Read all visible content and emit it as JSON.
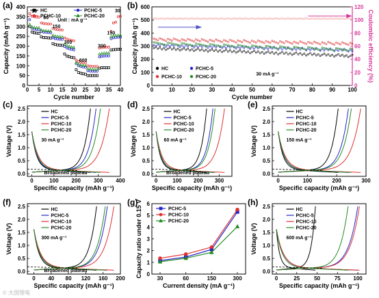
{
  "watermark": "© 大国锂电",
  "chart_data": [
    {
      "id": "a",
      "type": "scatter",
      "letter": "(a)",
      "xlabel": "Cycle number",
      "ylabel": "Capacity (mAh g⁻¹)",
      "xlim": [
        0,
        40
      ],
      "ylim": [
        0,
        400
      ],
      "xticks": [
        0,
        5,
        10,
        15,
        20,
        25,
        30,
        35,
        40
      ],
      "yticks": [
        0,
        50,
        100,
        150,
        200,
        250,
        300,
        350,
        400
      ],
      "unit_label": "Unit : mA g⁻¹",
      "rate_labels": [
        {
          "text": "30",
          "x": 3,
          "y": 370
        },
        {
          "text": "60",
          "x": 8,
          "y": 338
        },
        {
          "text": "150",
          "x": 12.5,
          "y": 293
        },
        {
          "text": "300",
          "x": 17.5,
          "y": 213
        },
        {
          "text": "600",
          "x": 24,
          "y": 120
        },
        {
          "text": "300",
          "x": 32,
          "y": 193
        },
        {
          "text": "150",
          "x": 36,
          "y": 260
        },
        {
          "text": "30",
          "x": 38.8,
          "y": 372
        }
      ],
      "series": [
        {
          "name": "HC",
          "color": "#000000",
          "marker": "square",
          "values": [
            300,
            272,
            268,
            266,
            265,
            247,
            244,
            243,
            242,
            241,
            212,
            208,
            206,
            205,
            204,
            160,
            150,
            146,
            143,
            141,
            80,
            66,
            62,
            59,
            57,
            50,
            50,
            50,
            50,
            50,
            88,
            90,
            90,
            90,
            90,
            180,
            182,
            183,
            184,
            184
          ]
        },
        {
          "name": "PCHC-5",
          "color": "#2323c8",
          "marker": "circle",
          "values": [
            335,
            290,
            286,
            284,
            283,
            274,
            271,
            270,
            269,
            268,
            242,
            238,
            236,
            235,
            234,
            198,
            190,
            186,
            183,
            181,
            110,
            100,
            96,
            94,
            92,
            75,
            73,
            72,
            72,
            72,
            145,
            148,
            149,
            150,
            150,
            238,
            242,
            244,
            245,
            246
          ]
        },
        {
          "name": "PCHC-10",
          "color": "#e03030",
          "marker": "circle",
          "values": [
            365,
            352,
            349,
            348,
            347,
            318,
            315,
            314,
            313,
            312,
            290,
            286,
            284,
            283,
            282,
            242,
            236,
            232,
            229,
            227,
            130,
            122,
            118,
            116,
            115,
            100,
            98,
            97,
            97,
            97,
            190,
            193,
            194,
            195,
            195,
            275,
            318,
            322,
            350,
            352
          ]
        },
        {
          "name": "PCHC-20",
          "color": "#228b22",
          "marker": "triangle",
          "values": [
            310,
            298,
            295,
            294,
            293,
            282,
            279,
            278,
            277,
            276,
            255,
            251,
            249,
            248,
            247,
            210,
            203,
            199,
            196,
            194,
            118,
            108,
            104,
            102,
            100,
            85,
            83,
            82,
            82,
            82,
            160,
            163,
            164,
            165,
            165,
            248,
            252,
            254,
            255,
            256
          ]
        }
      ]
    },
    {
      "id": "b",
      "type": "scatter",
      "letter": "(b)",
      "xlabel": "Cycle number",
      "ylabel": "Capacity (mAh g⁻¹)",
      "y2label": "Coulombic efficiency (%)",
      "xlim": [
        0,
        100
      ],
      "ylim": [
        0,
        600
      ],
      "y2lim": [
        0,
        120
      ],
      "xticks": [
        0,
        10,
        20,
        30,
        40,
        50,
        60,
        70,
        80,
        90,
        100
      ],
      "yticks": [
        0,
        100,
        200,
        300,
        400,
        500,
        600
      ],
      "y2ticks": [
        0,
        20,
        40,
        60,
        80,
        100,
        120
      ],
      "rate_label": "30 mA g⁻¹",
      "coulombic_efficiency": 102,
      "series": [
        {
          "name": "HC",
          "color": "#000000",
          "start": 285,
          "end": 225
        },
        {
          "name": "PCHC-5",
          "color": "#2323c8",
          "start": 308,
          "end": 268
        },
        {
          "name": "PCHC-10",
          "color": "#e03030",
          "start": 352,
          "end": 318
        },
        {
          "name": "PCHC-20",
          "color": "#228b22",
          "start": 322,
          "end": 272
        }
      ]
    },
    {
      "id": "c",
      "type": "line",
      "letter": "(c)",
      "xlabel": "Specific capacity (mAh g⁻¹)",
      "ylabel": "Voltage (V)",
      "xlim": [
        -20,
        400
      ],
      "ylim": [
        -0.1,
        2.6
      ],
      "xticks": [
        0,
        100,
        200,
        300,
        400
      ],
      "yticks": [
        0.0,
        0.5,
        1.0,
        1.5,
        2.0,
        2.5
      ],
      "rate": "30 mA g⁻¹",
      "annotation": "Broadened plateau",
      "caps": [
        265,
        290,
        350,
        310
      ]
    },
    {
      "id": "d",
      "type": "line",
      "letter": "(d)",
      "xlabel": "Specific capacity (mAh g⁻¹)",
      "ylabel": "Voltage (V)",
      "xlim": [
        -20,
        360
      ],
      "ylim": [
        -0.1,
        2.6
      ],
      "xticks": [
        0,
        100,
        200,
        300
      ],
      "yticks": [
        0.0,
        0.5,
        1.0,
        1.5,
        2.0,
        2.5
      ],
      "rate": "60 mA g⁻¹",
      "annotation": "Broadened plateau",
      "caps": [
        240,
        270,
        325,
        280
      ]
    },
    {
      "id": "e",
      "type": "line",
      "letter": "(e)",
      "xlabel": "Specific capacity (mAh g⁻¹)",
      "ylabel": "Voltage (V)",
      "xlim": [
        -20,
        300
      ],
      "ylim": [
        -0.1,
        2.6
      ],
      "xticks": [
        0,
        100,
        200,
        300
      ],
      "yticks": [
        0.0,
        0.5,
        1.0,
        1.5,
        2.0,
        2.5
      ],
      "rate": "150 mA g⁻¹",
      "annotation": "",
      "caps": [
        205,
        240,
        282,
        250
      ]
    },
    {
      "id": "f",
      "type": "line",
      "letter": "(f)",
      "xlabel": "Specific capacity (mAh g⁻¹)",
      "ylabel": "Voltage (V)",
      "xlim": [
        -15,
        200
      ],
      "ylim": [
        -0.1,
        2.6
      ],
      "xticks": [
        0,
        40,
        80,
        120,
        160,
        200
      ],
      "yticks": [
        0.0,
        0.5,
        1.0,
        1.5,
        2.0,
        2.5
      ],
      "rate": "300 mA g⁻¹",
      "annotation": "Broadened plateau",
      "caps": [
        145,
        170,
        185,
        165
      ]
    },
    {
      "id": "g",
      "type": "line",
      "letter": "(g)",
      "xlabel": "Current density (mA g⁻¹)",
      "ylabel": "Capacity ratio under 0.15 V",
      "categories": [
        "30",
        "60",
        "150",
        "300"
      ],
      "ylim": [
        0,
        6
      ],
      "yticks": [
        0,
        1,
        2,
        3,
        4,
        5,
        6
      ],
      "series": [
        {
          "name": "PCHC-5",
          "color": "#2323c8",
          "marker": "square",
          "values": [
            1.15,
            1.45,
            2.1,
            5.3
          ]
        },
        {
          "name": "PCHC-10",
          "color": "#e03030",
          "marker": "circle",
          "values": [
            1.35,
            1.7,
            2.3,
            5.5
          ]
        },
        {
          "name": "PCHC-20",
          "color": "#228b22",
          "marker": "triangle",
          "values": [
            1.05,
            1.35,
            1.85,
            4.05
          ]
        }
      ]
    },
    {
      "id": "h",
      "type": "line",
      "letter": "(h)",
      "xlabel": "Specific capacity (mAh g⁻¹)",
      "ylabel": "Voltage (V)",
      "xlim": [
        -5,
        110
      ],
      "ylim": [
        -0.1,
        2.6
      ],
      "xticks": [
        0,
        25,
        50,
        75,
        100
      ],
      "yticks": [
        0.0,
        0.5,
        1.0,
        1.5,
        2.0,
        2.5
      ],
      "rate": "600 mA g⁻¹",
      "annotation": "",
      "caps": [
        48,
        100,
        102,
        88
      ]
    }
  ],
  "legend_profiles": [
    {
      "name": "HC",
      "color": "#000000"
    },
    {
      "name": "PCHC-5",
      "color": "#2323c8"
    },
    {
      "name": "PCHC-10",
      "color": "#e03030"
    },
    {
      "name": "PCHC-20",
      "color": "#228b22"
    }
  ]
}
